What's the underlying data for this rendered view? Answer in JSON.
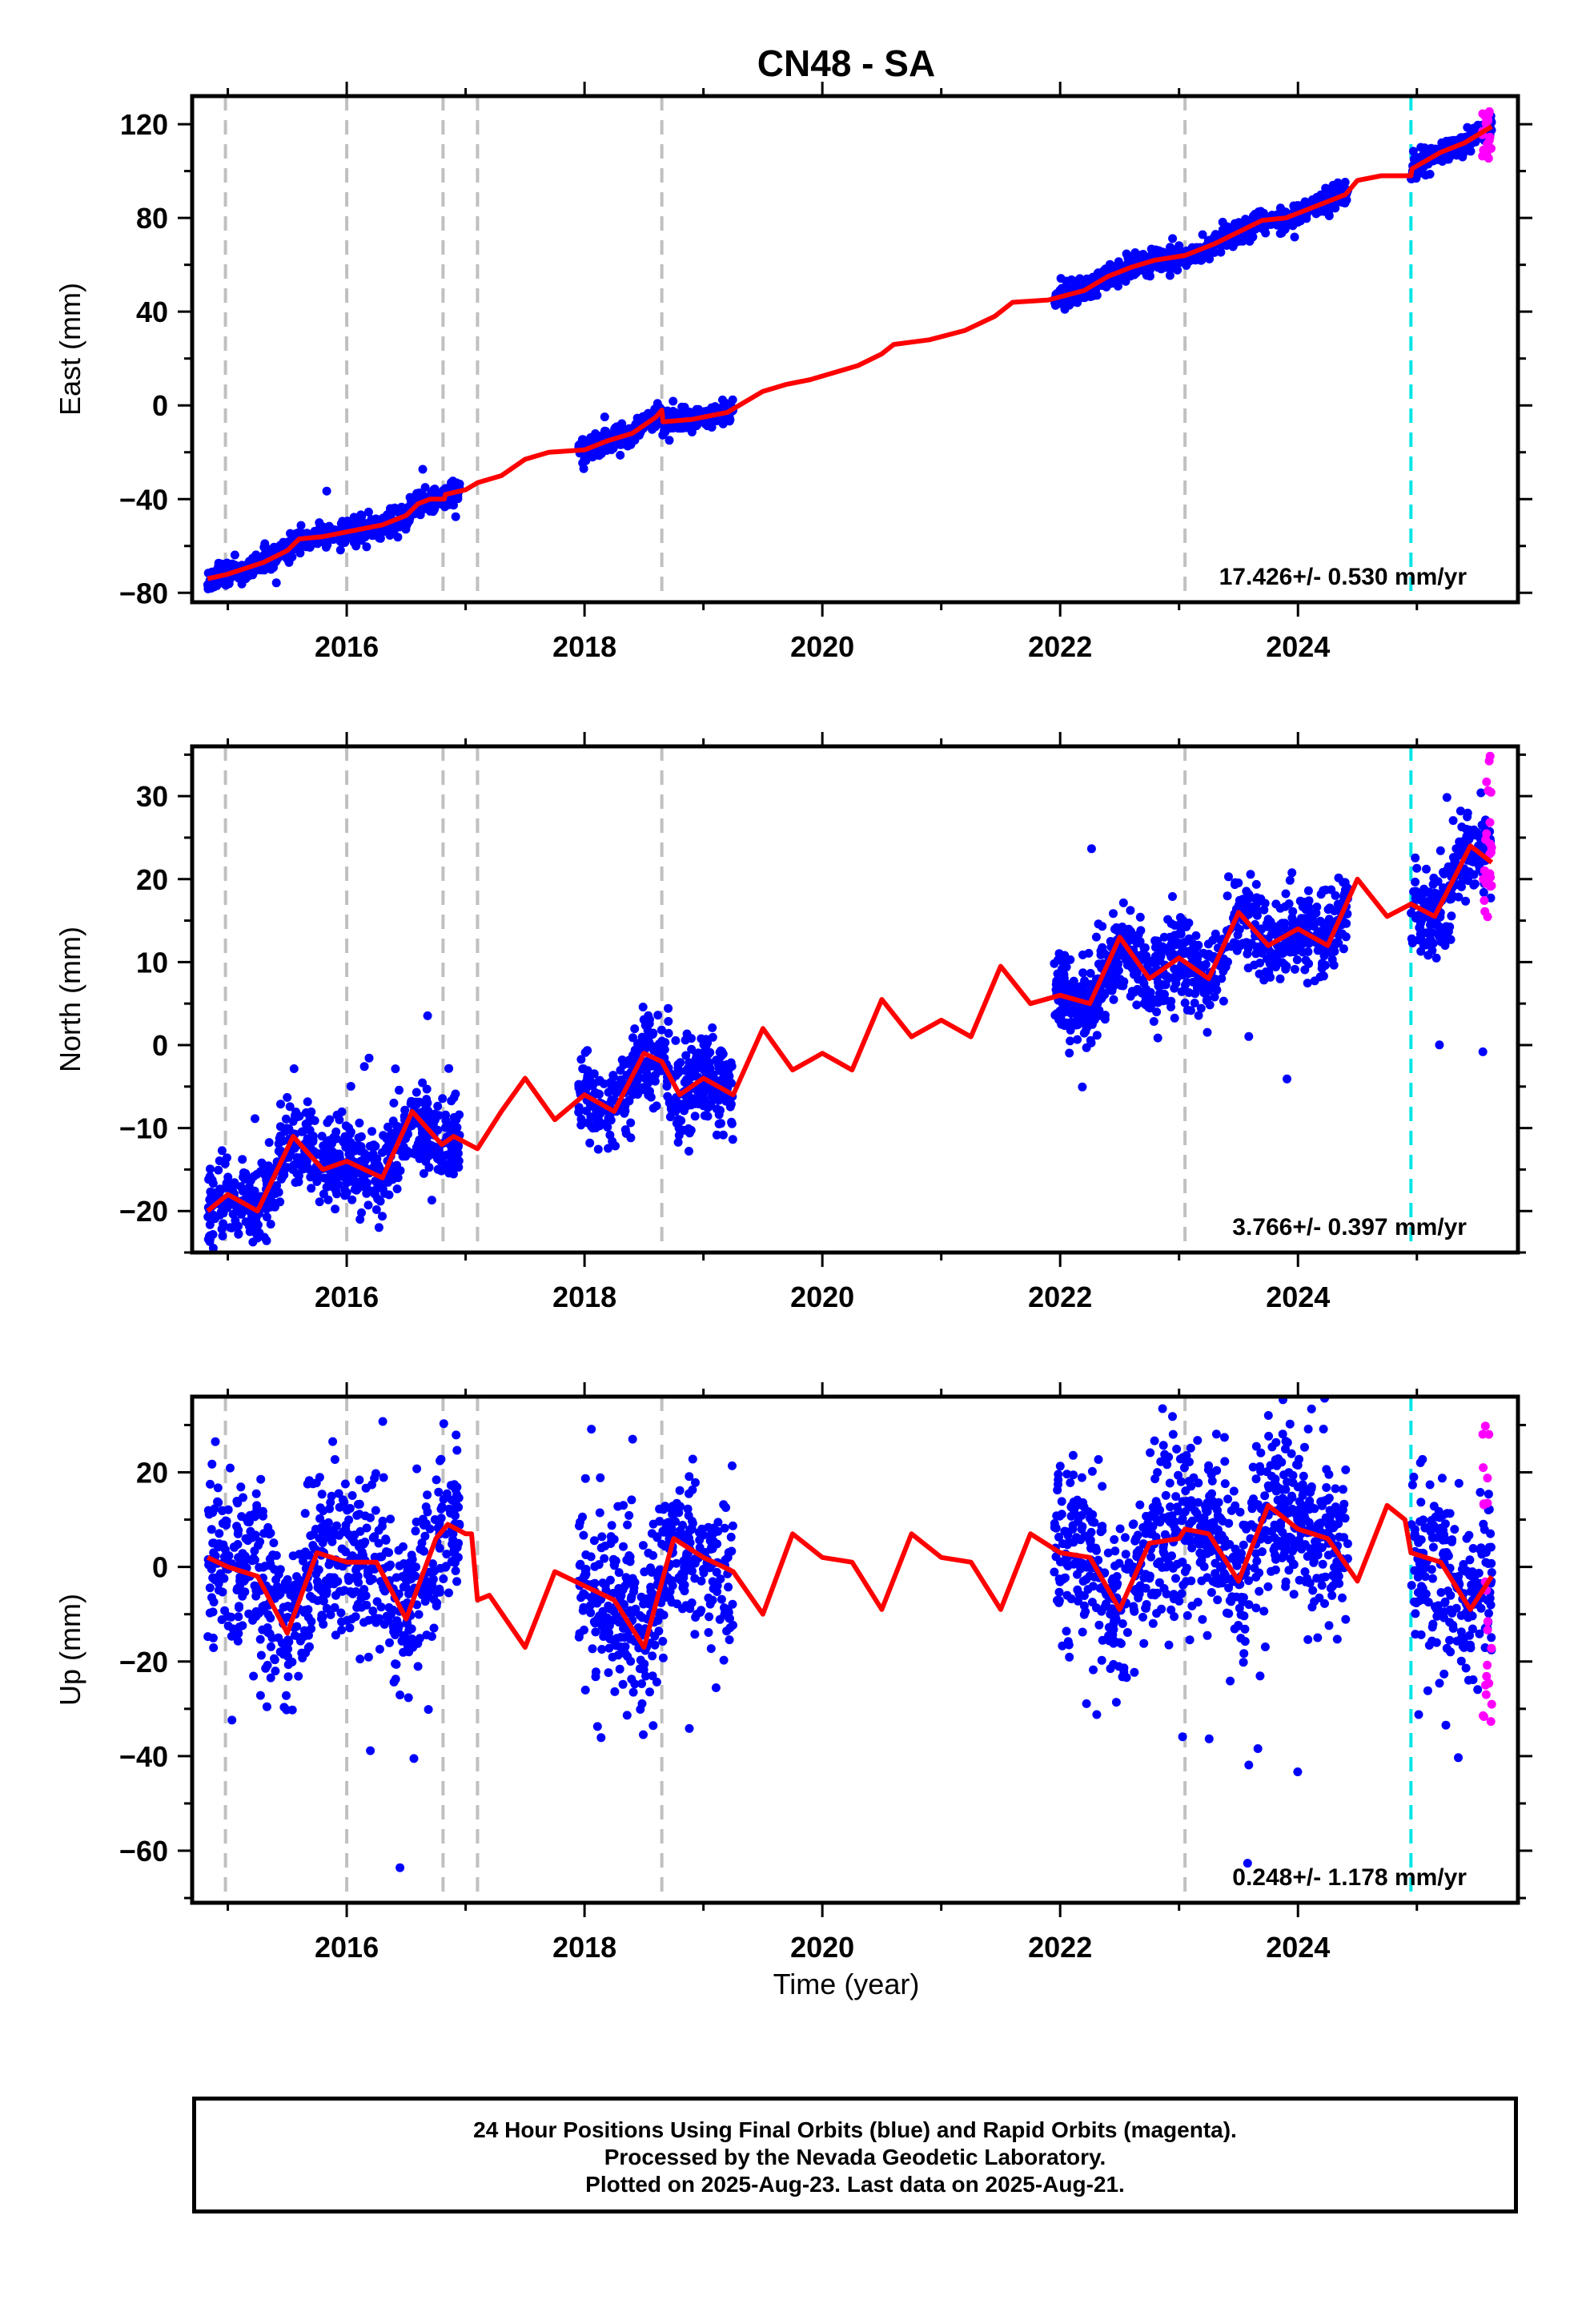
{
  "title": "CN48 - SA",
  "xlabel": "Time (year)",
  "x_ticks": [
    "2016",
    "2018",
    "2020",
    "2022",
    "2024"
  ],
  "footer": {
    "line1": "24 Hour Positions Using Final Orbits (blue) and Rapid Orbits (magenta).",
    "line2": "Processed by the Nevada Geodetic Laboratory.",
    "line3": "Plotted on 2025-Aug-23. Last data on 2025-Aug-21."
  },
  "colors": {
    "final_orbits": "#0000ff",
    "rapid_orbits": "#ff00ff",
    "model": "#ff0000",
    "equipment_change": "#c0c0c0",
    "earthquake": "#00e5e5"
  },
  "chart_data": [
    {
      "type": "scatter",
      "component": "East",
      "ylabel": "East (mm)",
      "xlim": [
        2014.7,
        2025.85
      ],
      "ylim": [
        -84,
        132
      ],
      "y_ticks": [
        -80,
        -40,
        0,
        40,
        80,
        120
      ],
      "rate_label": "17.426+/- 0.530 mm/yr",
      "rate": 17.426,
      "data_spans": [
        [
          2014.83,
          2016.95
        ],
        [
          2017.95,
          2019.25
        ],
        [
          2021.95,
          2024.42
        ],
        [
          2024.95,
          2025.63
        ]
      ],
      "rapid_span": [
        2025.55,
        2025.63
      ],
      "rapid_y_range": [
        105,
        126
      ],
      "model": [
        [
          2014.83,
          -74
        ],
        [
          2015.0,
          -72
        ],
        [
          2015.3,
          -67
        ],
        [
          2015.5,
          -62
        ],
        [
          2015.6,
          -57
        ],
        [
          2015.8,
          -56
        ],
        [
          2016.0,
          -54
        ],
        [
          2016.3,
          -51
        ],
        [
          2016.5,
          -47
        ],
        [
          2016.6,
          -42
        ],
        [
          2016.7,
          -40
        ],
        [
          2016.82,
          -40
        ],
        [
          2016.83,
          -38
        ],
        [
          2017.0,
          -36
        ],
        [
          2017.1,
          -33
        ],
        [
          2017.3,
          -30
        ],
        [
          2017.5,
          -23
        ],
        [
          2017.7,
          -20
        ],
        [
          2018.0,
          -19
        ],
        [
          2018.2,
          -15
        ],
        [
          2018.4,
          -12
        ],
        [
          2018.6,
          -5
        ],
        [
          2018.65,
          -2
        ],
        [
          2018.66,
          -7
        ],
        [
          2018.9,
          -6
        ],
        [
          2019.2,
          -3
        ],
        [
          2019.5,
          6
        ],
        [
          2019.7,
          9
        ],
        [
          2019.9,
          11
        ],
        [
          2020.1,
          14
        ],
        [
          2020.3,
          17
        ],
        [
          2020.5,
          22
        ],
        [
          2020.6,
          26
        ],
        [
          2020.9,
          28
        ],
        [
          2021.2,
          32
        ],
        [
          2021.45,
          38
        ],
        [
          2021.6,
          44
        ],
        [
          2021.9,
          45
        ],
        [
          2022.2,
          49
        ],
        [
          2022.4,
          55
        ],
        [
          2022.6,
          59
        ],
        [
          2022.8,
          62
        ],
        [
          2023.05,
          64
        ],
        [
          2023.3,
          69
        ],
        [
          2023.5,
          74
        ],
        [
          2023.7,
          79
        ],
        [
          2023.9,
          80
        ],
        [
          2024.2,
          86
        ],
        [
          2024.4,
          90
        ],
        [
          2024.5,
          96
        ],
        [
          2024.7,
          98
        ],
        [
          2024.9,
          98
        ],
        [
          2024.95,
          98
        ],
        [
          2024.96,
          101
        ],
        [
          2025.2,
          108
        ],
        [
          2025.4,
          112
        ],
        [
          2025.63,
          119
        ]
      ],
      "equipment_changes": [
        2014.98,
        2016.0,
        2016.81,
        2017.1,
        2018.65,
        2023.05
      ],
      "earthquakes": [
        2024.95
      ]
    },
    {
      "type": "scatter",
      "component": "North",
      "ylabel": "North (mm)",
      "xlim": [
        2014.7,
        2025.85
      ],
      "ylim": [
        -25,
        36
      ],
      "y_ticks": [
        -20,
        -10,
        0,
        10,
        20,
        30
      ],
      "rate_label": "3.766+/- 0.397 mm/yr",
      "rate": 3.766,
      "data_spans": [
        [
          2014.83,
          2016.95
        ],
        [
          2017.95,
          2019.25
        ],
        [
          2021.95,
          2024.42
        ],
        [
          2024.95,
          2025.63
        ]
      ],
      "rapid_span": [
        2025.55,
        2025.63
      ],
      "rapid_y_range": [
        15,
        35
      ],
      "model": [
        [
          2014.83,
          -20
        ],
        [
          2015.0,
          -18
        ],
        [
          2015.25,
          -20
        ],
        [
          2015.55,
          -11
        ],
        [
          2015.8,
          -15
        ],
        [
          2016.0,
          -14
        ],
        [
          2016.3,
          -16
        ],
        [
          2016.55,
          -8
        ],
        [
          2016.8,
          -12
        ],
        [
          2016.9,
          -11
        ],
        [
          2017.1,
          -12.5
        ],
        [
          2017.3,
          -8
        ],
        [
          2017.5,
          -4
        ],
        [
          2017.75,
          -9
        ],
        [
          2018.0,
          -6
        ],
        [
          2018.25,
          -8
        ],
        [
          2018.5,
          -1
        ],
        [
          2018.65,
          -2
        ],
        [
          2018.8,
          -6
        ],
        [
          2019.0,
          -4
        ],
        [
          2019.25,
          -6
        ],
        [
          2019.5,
          2
        ],
        [
          2019.75,
          -3
        ],
        [
          2020.0,
          -1
        ],
        [
          2020.25,
          -3
        ],
        [
          2020.5,
          5.5
        ],
        [
          2020.75,
          1
        ],
        [
          2021.0,
          3
        ],
        [
          2021.25,
          1
        ],
        [
          2021.5,
          9.5
        ],
        [
          2021.75,
          5
        ],
        [
          2022.0,
          6
        ],
        [
          2022.25,
          5
        ],
        [
          2022.5,
          13
        ],
        [
          2022.75,
          8
        ],
        [
          2023.0,
          10.5
        ],
        [
          2023.25,
          8
        ],
        [
          2023.5,
          16
        ],
        [
          2023.75,
          12
        ],
        [
          2024.0,
          14
        ],
        [
          2024.25,
          12
        ],
        [
          2024.5,
          20
        ],
        [
          2024.75,
          15.5
        ],
        [
          2024.95,
          17
        ],
        [
          2025.15,
          15.5
        ],
        [
          2025.45,
          24
        ],
        [
          2025.63,
          22
        ]
      ],
      "equipment_changes": [
        2014.98,
        2016.0,
        2016.81,
        2017.1,
        2018.65,
        2023.05
      ],
      "earthquakes": [
        2024.95
      ]
    },
    {
      "type": "scatter",
      "component": "Up",
      "ylabel": "Up (mm)",
      "xlim": [
        2014.7,
        2025.85
      ],
      "ylim": [
        -71,
        36
      ],
      "y_ticks": [
        -60,
        -40,
        -20,
        0,
        20
      ],
      "rate_label": "0.248+/- 1.178 mm/yr",
      "rate": 0.248,
      "data_spans": [
        [
          2014.83,
          2016.95
        ],
        [
          2017.95,
          2019.25
        ],
        [
          2021.95,
          2024.42
        ],
        [
          2024.95,
          2025.63
        ]
      ],
      "rapid_span": [
        2025.55,
        2025.63
      ],
      "rapid_y_range": [
        -39,
        33
      ],
      "model": [
        [
          2014.83,
          2
        ],
        [
          2015.0,
          0
        ],
        [
          2015.25,
          -2
        ],
        [
          2015.5,
          -14
        ],
        [
          2015.75,
          3
        ],
        [
          2016.0,
          1
        ],
        [
          2016.25,
          1
        ],
        [
          2016.5,
          -11
        ],
        [
          2016.75,
          6
        ],
        [
          2016.85,
          9
        ],
        [
          2017.0,
          7
        ],
        [
          2017.05,
          7
        ],
        [
          2017.1,
          -7
        ],
        [
          2017.2,
          -6
        ],
        [
          2017.5,
          -17
        ],
        [
          2017.75,
          -1
        ],
        [
          2018.0,
          -4
        ],
        [
          2018.25,
          -7
        ],
        [
          2018.5,
          -17
        ],
        [
          2018.75,
          6
        ],
        [
          2019.0,
          2
        ],
        [
          2019.25,
          -1
        ],
        [
          2019.5,
          -10
        ],
        [
          2019.75,
          7
        ],
        [
          2020.0,
          2
        ],
        [
          2020.25,
          1
        ],
        [
          2020.5,
          -9
        ],
        [
          2020.75,
          7
        ],
        [
          2021.0,
          2
        ],
        [
          2021.25,
          1
        ],
        [
          2021.5,
          -9
        ],
        [
          2021.75,
          7
        ],
        [
          2022.0,
          3
        ],
        [
          2022.25,
          2
        ],
        [
          2022.5,
          -9
        ],
        [
          2022.75,
          5
        ],
        [
          2023.0,
          6
        ],
        [
          2023.05,
          8
        ],
        [
          2023.25,
          7
        ],
        [
          2023.5,
          -3
        ],
        [
          2023.75,
          13
        ],
        [
          2024.0,
          8
        ],
        [
          2024.25,
          6
        ],
        [
          2024.5,
          -3
        ],
        [
          2024.75,
          13
        ],
        [
          2024.9,
          10
        ],
        [
          2024.95,
          3
        ],
        [
          2025.2,
          1
        ],
        [
          2025.45,
          -9
        ],
        [
          2025.63,
          -2
        ]
      ],
      "equipment_changes": [
        2014.98,
        2016.0,
        2016.81,
        2017.1,
        2018.65,
        2023.05
      ],
      "earthquakes": [
        2024.95
      ]
    }
  ]
}
